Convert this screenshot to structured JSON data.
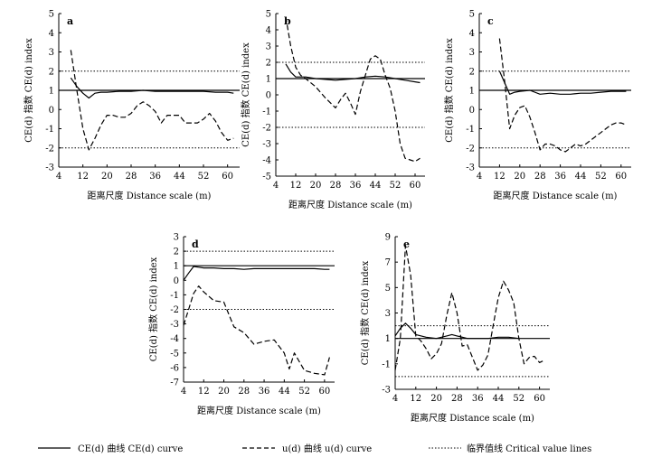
{
  "legend": {
    "ce_label": "CE(d) 曲线 CE(d) curve",
    "u_label": "u(d) 曲线 u(d) curve",
    "crit_label": "临界值线 Critical value lines"
  },
  "chart_data": [
    {
      "type": "line",
      "panel_label": "a",
      "xlabel": "距离尺度 Distance scale (m)",
      "ylabel": "CE(d) 指数 CE(d) index",
      "xlim": [
        4,
        64
      ],
      "ylim": [
        -3,
        5
      ],
      "xticks": [
        4,
        12,
        20,
        28,
        36,
        44,
        52,
        60
      ],
      "yticks": [
        -3,
        -2,
        -1,
        0,
        1,
        2,
        3,
        4,
        5
      ],
      "reference_line": 1,
      "critical_values": [
        2,
        -2
      ],
      "series": [
        {
          "name": "CE(d) curve",
          "style": "solid",
          "x": [
            8,
            10,
            12,
            14,
            16,
            18,
            20,
            24,
            28,
            32,
            36,
            40,
            44,
            48,
            52,
            56,
            60,
            62
          ],
          "y": [
            1.65,
            1.2,
            0.85,
            0.6,
            0.85,
            0.9,
            0.9,
            0.95,
            0.95,
            1.0,
            0.95,
            0.95,
            0.95,
            0.95,
            0.95,
            0.9,
            0.9,
            0.85
          ]
        },
        {
          "name": "u(d) curve",
          "style": "dashed",
          "x": [
            8,
            10,
            12,
            14,
            16,
            18,
            20,
            22,
            24,
            26,
            28,
            30,
            32,
            34,
            36,
            38,
            40,
            42,
            44,
            46,
            48,
            50,
            52,
            54,
            56,
            58,
            60,
            62
          ],
          "y": [
            3.1,
            1.0,
            -1.0,
            -2.1,
            -1.5,
            -0.8,
            -0.3,
            -0.3,
            -0.4,
            -0.4,
            -0.2,
            0.2,
            0.4,
            0.2,
            -0.1,
            -0.7,
            -0.3,
            -0.3,
            -0.3,
            -0.7,
            -0.7,
            -0.7,
            -0.5,
            -0.2,
            -0.6,
            -1.2,
            -1.6,
            -1.5
          ]
        }
      ]
    },
    {
      "type": "line",
      "panel_label": "b",
      "xlabel": "距离尺度 Distance scale (m)",
      "ylabel": "CE(d) 指数 CE(d) index",
      "xlim": [
        4,
        64
      ],
      "ylim": [
        -5,
        5
      ],
      "xticks": [
        4,
        12,
        20,
        28,
        36,
        44,
        52,
        60
      ],
      "yticks": [
        -5,
        -4,
        -3,
        -2,
        -1,
        0,
        1,
        2,
        3,
        4,
        5
      ],
      "reference_line": 1,
      "critical_values": [
        2,
        -2
      ],
      "series": [
        {
          "name": "CE(d) curve",
          "style": "solid",
          "x": [
            8,
            10,
            12,
            14,
            16,
            20,
            24,
            28,
            32,
            36,
            40,
            44,
            48,
            52,
            56,
            60,
            62
          ],
          "y": [
            1.9,
            1.4,
            1.1,
            1.1,
            1.1,
            1.0,
            0.95,
            0.9,
            0.95,
            1.0,
            1.1,
            1.15,
            1.1,
            1.0,
            0.9,
            0.8,
            0.75
          ]
        },
        {
          "name": "u(d) curve",
          "style": "dashed",
          "x": [
            8,
            10,
            12,
            14,
            16,
            20,
            24,
            28,
            30,
            32,
            34,
            36,
            38,
            40,
            42,
            44,
            46,
            48,
            50,
            52,
            54,
            56,
            58,
            60,
            62
          ],
          "y": [
            4.8,
            3.0,
            1.7,
            1.2,
            1.0,
            0.5,
            -0.2,
            -0.8,
            -0.3,
            0.1,
            -0.5,
            -1.2,
            0.2,
            1.2,
            2.2,
            2.4,
            2.2,
            1.2,
            0.4,
            -1.0,
            -3.0,
            -3.9,
            -4.0,
            -4.1,
            -3.9
          ]
        }
      ]
    },
    {
      "type": "line",
      "panel_label": "c",
      "xlabel": "距离尺度 Distance scale (m)",
      "ylabel": "CE(d) 指数 CE(d) index",
      "xlim": [
        4,
        64
      ],
      "ylim": [
        -3,
        5
      ],
      "xticks": [
        4,
        12,
        20,
        28,
        36,
        44,
        52,
        60
      ],
      "yticks": [
        -3,
        -2,
        -1,
        0,
        1,
        2,
        3,
        4,
        5
      ],
      "reference_line": 1,
      "critical_values": [
        2,
        -2
      ],
      "series": [
        {
          "name": "CE(d) curve",
          "style": "solid",
          "x": [
            12,
            14,
            16,
            18,
            20,
            24,
            28,
            32,
            36,
            40,
            44,
            48,
            52,
            56,
            60,
            62
          ],
          "y": [
            2.0,
            1.4,
            0.8,
            0.9,
            0.95,
            1.0,
            0.8,
            0.85,
            0.8,
            0.8,
            0.85,
            0.85,
            0.9,
            0.95,
            0.95,
            0.95
          ]
        },
        {
          "name": "u(d) curve",
          "style": "dashed",
          "x": [
            12,
            14,
            16,
            18,
            20,
            22,
            24,
            26,
            28,
            30,
            32,
            34,
            36,
            38,
            40,
            42,
            44,
            46,
            48,
            50,
            52,
            54,
            56,
            58,
            60,
            62
          ],
          "y": [
            3.7,
            1.5,
            -1.0,
            -0.3,
            0.1,
            0.2,
            -0.4,
            -1.2,
            -2.1,
            -1.8,
            -1.8,
            -1.9,
            -2.1,
            -2.2,
            -2.0,
            -1.8,
            -1.9,
            -1.8,
            -1.6,
            -1.4,
            -1.2,
            -1.0,
            -0.8,
            -0.7,
            -0.7,
            -0.8
          ]
        }
      ]
    },
    {
      "type": "line",
      "panel_label": "d",
      "xlabel": "距离尺度 Distance scale (m)",
      "ylabel": "CE(d) 指数 CE(d) index",
      "xlim": [
        4,
        64
      ],
      "ylim": [
        -7,
        3
      ],
      "xticks": [
        4,
        12,
        20,
        28,
        36,
        44,
        52,
        60
      ],
      "yticks": [
        -7,
        -6,
        -5,
        -4,
        -3,
        -2,
        -1,
        0,
        1,
        2,
        3
      ],
      "reference_line": 1,
      "critical_values": [
        2,
        -2
      ],
      "series": [
        {
          "name": "CE(d) curve",
          "style": "solid",
          "x": [
            4,
            6,
            8,
            10,
            12,
            16,
            20,
            24,
            28,
            32,
            36,
            40,
            44,
            48,
            52,
            56,
            60,
            62
          ],
          "y": [
            0.0,
            0.5,
            0.95,
            0.9,
            0.85,
            0.85,
            0.8,
            0.8,
            0.75,
            0.8,
            0.8,
            0.8,
            0.8,
            0.8,
            0.8,
            0.8,
            0.75,
            0.75
          ]
        },
        {
          "name": "u(d) curve",
          "style": "dashed",
          "x": [
            4,
            6,
            8,
            10,
            12,
            16,
            20,
            24,
            28,
            32,
            36,
            40,
            44,
            46,
            48,
            52,
            56,
            60,
            62
          ],
          "y": [
            -3.1,
            -2.0,
            -0.9,
            -0.4,
            -0.8,
            -1.4,
            -1.5,
            -3.2,
            -3.6,
            -4.4,
            -4.2,
            -4.1,
            -5.0,
            -6.1,
            -5.0,
            -6.2,
            -6.4,
            -6.5,
            -5.3
          ]
        }
      ]
    },
    {
      "type": "line",
      "panel_label": "e",
      "xlabel": "距离尺度 Distance scale (m)",
      "ylabel": "CE(d) 指数 CE(d) index",
      "xlim": [
        4,
        64
      ],
      "ylim": [
        -3,
        9
      ],
      "xticks": [
        4,
        12,
        20,
        28,
        36,
        44,
        52,
        60
      ],
      "yticks": [
        -3,
        -1,
        1,
        3,
        5,
        7,
        9
      ],
      "reference_line": 1,
      "critical_values": [
        2,
        -2
      ],
      "series": [
        {
          "name": "CE(d) curve",
          "style": "solid",
          "x": [
            4,
            6,
            8,
            10,
            12,
            16,
            20,
            24,
            26,
            28,
            32,
            36,
            40,
            44,
            48,
            52
          ],
          "y": [
            1.2,
            1.8,
            2.2,
            1.8,
            1.3,
            1.1,
            1.0,
            1.2,
            1.3,
            1.2,
            1.0,
            1.0,
            1.0,
            1.1,
            1.1,
            1.0
          ]
        },
        {
          "name": "u(d) curve",
          "style": "dashed",
          "x": [
            4,
            6,
            8,
            10,
            12,
            14,
            16,
            18,
            20,
            22,
            24,
            26,
            28,
            30,
            32,
            34,
            36,
            38,
            40,
            42,
            44,
            46,
            48,
            50,
            52,
            54,
            56,
            58,
            60,
            62
          ],
          "y": [
            -1.5,
            1.0,
            8.3,
            6.0,
            1.2,
            0.8,
            0.2,
            -0.6,
            -0.2,
            0.6,
            2.8,
            4.6,
            3.0,
            0.4,
            0.5,
            -0.5,
            -1.5,
            -1.1,
            -0.3,
            2.0,
            4.2,
            5.5,
            4.8,
            3.8,
            1.0,
            -1.0,
            -0.5,
            -0.4,
            -0.9,
            -0.7
          ]
        }
      ]
    }
  ]
}
